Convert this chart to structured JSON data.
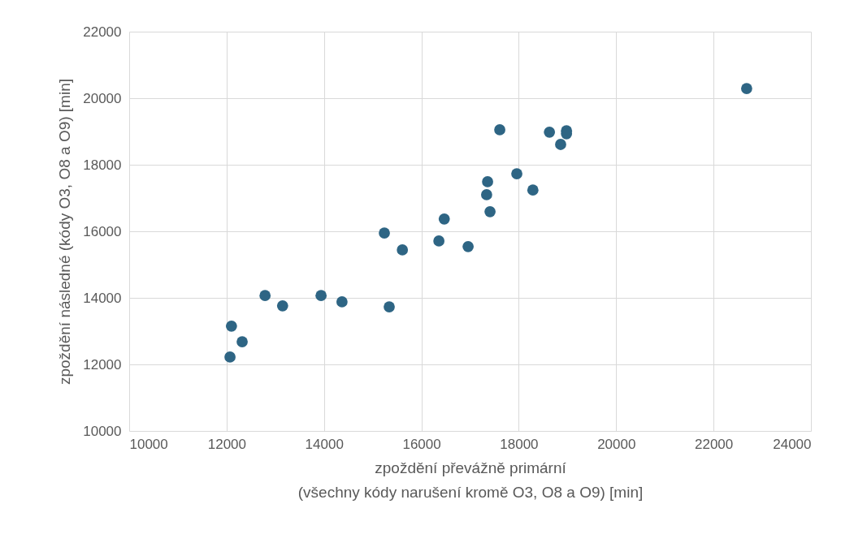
{
  "chart_data": {
    "type": "scatter",
    "xlabel": "zpoždění převážně primární\n(všechny kódy narušení kromě O3, O8 a O9) [min]",
    "ylabel": "zpoždění následné (kódy O3, O8 a O9) [min]",
    "x": [
      22680,
      17610,
      18630,
      18980,
      18980,
      18860,
      17960,
      17360,
      17340,
      18290,
      17410,
      16470,
      15240,
      15610,
      16360,
      16960,
      12790,
      13150,
      13940,
      14370,
      15340,
      12100,
      12320,
      12070
    ],
    "values": [
      20290,
      19050,
      18980,
      19020,
      18930,
      18610,
      17730,
      17490,
      17100,
      17240,
      16590,
      16370,
      15950,
      15440,
      15710,
      15540,
      14070,
      13760,
      14070,
      13880,
      13730,
      13150,
      12680,
      12220
    ],
    "color": "#2e6584",
    "marker": "circle",
    "grid": true,
    "xlim": [
      10000,
      24000
    ],
    "xticks": [
      10000,
      12000,
      14000,
      16000,
      18000,
      20000,
      22000,
      24000
    ],
    "ylim": [
      10000,
      22000
    ],
    "yticks": [
      10000,
      12000,
      14000,
      16000,
      18000,
      20000,
      22000
    ]
  }
}
